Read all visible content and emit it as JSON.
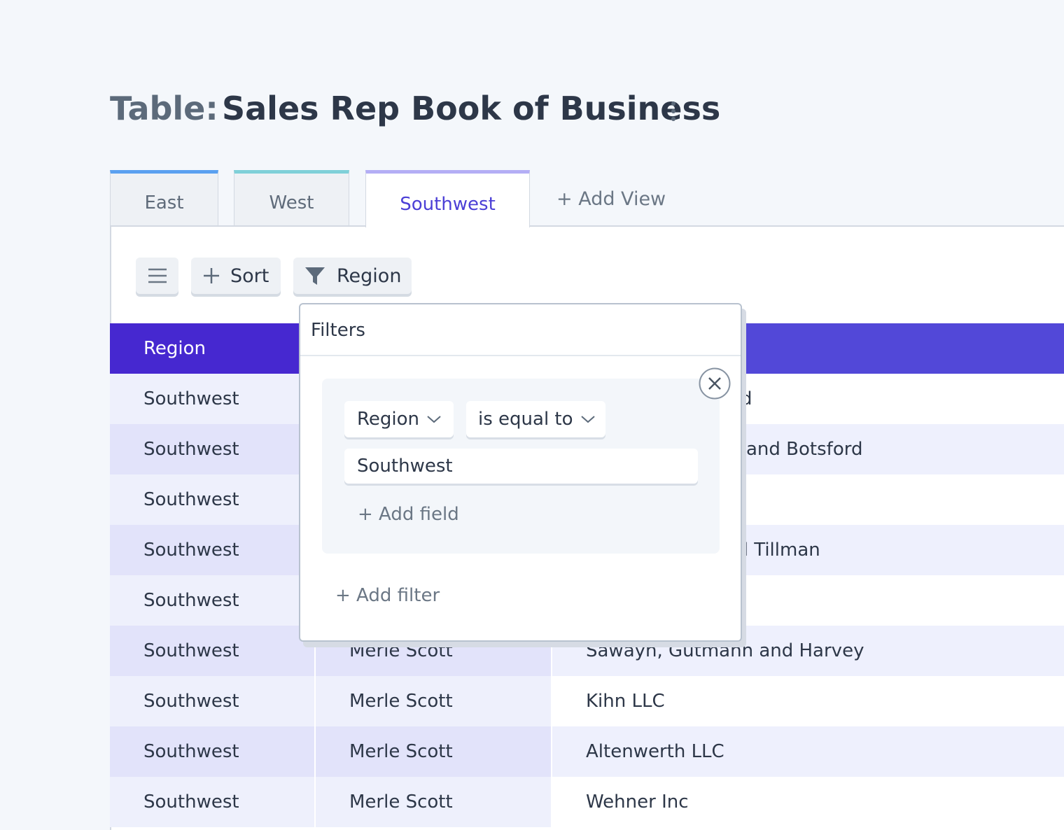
{
  "header": {
    "label": "Table:",
    "title": "Sales Rep Book of Business"
  },
  "tabs": [
    "East",
    "West",
    "Southwest"
  ],
  "add_view": "+ Add View",
  "toolbar": {
    "sort": "Sort",
    "filter": "Region"
  },
  "table": {
    "header": "Region",
    "rows": [
      {
        "region": "Southwest",
        "account": "d"
      },
      {
        "region": "Southwest",
        "account": "and Botsford"
      },
      {
        "region": "Southwest"
      },
      {
        "region": "Southwest",
        "account": "nd Tillman"
      },
      {
        "region": "Southwest"
      },
      {
        "region": "Southwest",
        "rep": "Merle Scott",
        "account": "Sawayn, Gutmann and Harvey"
      },
      {
        "region": "Southwest",
        "rep": "Merle Scott",
        "account": "Kihn LLC"
      },
      {
        "region": "Southwest",
        "rep": "Merle Scott",
        "account": "Altenwerth LLC"
      },
      {
        "region": "Southwest",
        "rep": "Merle Scott",
        "account": "Wehner Inc"
      }
    ]
  },
  "filters": {
    "title": "Filters",
    "field": "Region",
    "operator": "is equal to",
    "value": "Southwest",
    "add_field": "+ Add field",
    "add_filter": "+ Add filter"
  }
}
